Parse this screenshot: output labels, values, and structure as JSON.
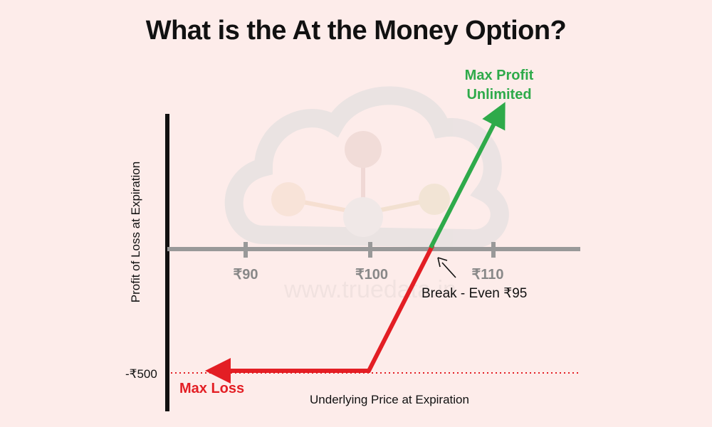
{
  "title": "What is the At the Money Option?",
  "watermark": "www.truedata.in",
  "y_axis_label": "Profit of Loss at Expiration",
  "x_axis_label": "Underlying Price at Expiration",
  "ticks": [
    "₹90",
    "₹100",
    "₹110"
  ],
  "loss_level_label": "-₹500",
  "max_loss_label": "Max Loss",
  "max_profit_line1": "Max Profit",
  "max_profit_line2": "Unlimited",
  "break_even_label": "Break - Even ₹95",
  "colors": {
    "background": "#fdecea",
    "loss": "#e31e24",
    "profit": "#2eaa4a",
    "axis": "#999999",
    "text": "#111111"
  }
}
